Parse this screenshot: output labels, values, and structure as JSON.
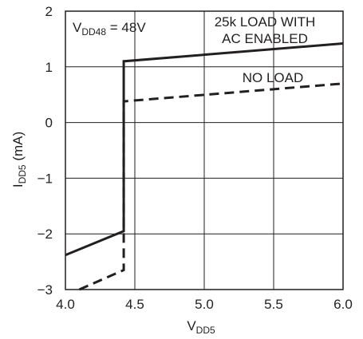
{
  "chart_data": {
    "type": "line",
    "condition": {
      "main": "V",
      "sub": "DD48",
      "value": " = 48V"
    },
    "xlabel": {
      "main": "V",
      "sub": "DD5",
      "unit": ""
    },
    "ylabel": {
      "main": "I",
      "sub": "DD5",
      "unit": " (mA)"
    },
    "xlim": [
      4.0,
      6.0
    ],
    "ylim": [
      -3,
      2
    ],
    "x_ticks": [
      "4.0",
      "4.5",
      "5.0",
      "5.5",
      "6.0"
    ],
    "y_ticks": [
      "2",
      "1",
      "0",
      "−1",
      "−2",
      "−3"
    ],
    "grid": true,
    "annotations": {
      "load_line1": "25k LOAD WITH",
      "load_line2": "AC ENABLED",
      "no_load": "NO LOAD"
    },
    "series": [
      {
        "name": "25k LOAD WITH AC ENABLED",
        "style": "solid",
        "points": [
          [
            4.0,
            -2.38
          ],
          [
            4.42,
            -1.95
          ],
          [
            4.42,
            1.1
          ],
          [
            6.0,
            1.42
          ]
        ]
      },
      {
        "name": "NO LOAD",
        "style": "dashed",
        "points": [
          [
            4.1,
            -3.0
          ],
          [
            4.42,
            -2.65
          ],
          [
            4.42,
            0.38
          ],
          [
            6.0,
            0.7
          ]
        ]
      }
    ],
    "colors": {
      "line": "#231f20",
      "grid": "#231f20",
      "background": "#ffffff"
    }
  }
}
